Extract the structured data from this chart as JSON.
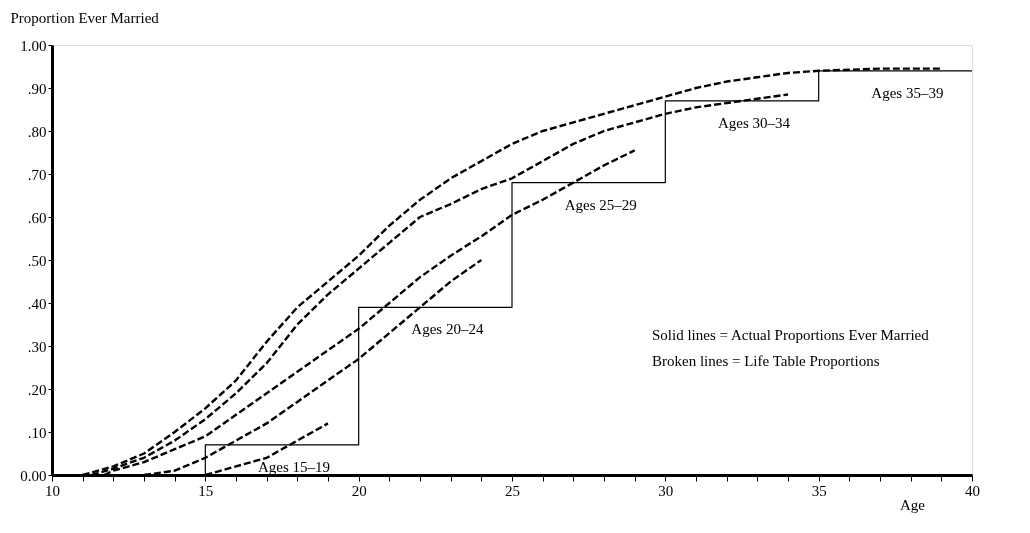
{
  "chart_data": {
    "type": "line",
    "xlabel": "Age",
    "ylabel": "Proportion Ever Married",
    "xlim": [
      10,
      40
    ],
    "ylim": [
      0,
      1
    ],
    "xticks": [
      10,
      {
        "value": 11,
        "label": null
      },
      {
        "value": 12,
        "label": null
      },
      {
        "value": 13,
        "label": null
      },
      {
        "value": 14,
        "label": null
      },
      15,
      {
        "value": 16,
        "label": null
      },
      {
        "value": 17,
        "label": null
      },
      {
        "value": 18,
        "label": null
      },
      {
        "value": 19,
        "label": null
      },
      20,
      {
        "value": 21,
        "label": null
      },
      {
        "value": 22,
        "label": null
      },
      {
        "value": 23,
        "label": null
      },
      {
        "value": 24,
        "label": null
      },
      25,
      {
        "value": 26,
        "label": null
      },
      {
        "value": 27,
        "label": null
      },
      {
        "value": 28,
        "label": null
      },
      {
        "value": 29,
        "label": null
      },
      30,
      {
        "value": 31,
        "label": null
      },
      {
        "value": 32,
        "label": null
      },
      {
        "value": 33,
        "label": null
      },
      {
        "value": 34,
        "label": null
      },
      35,
      {
        "value": 36,
        "label": null
      },
      {
        "value": 37,
        "label": null
      },
      {
        "value": 38,
        "label": null
      },
      {
        "value": 39,
        "label": null
      },
      40
    ],
    "yticks": [
      {
        "value": 0,
        "label": "0.00"
      },
      {
        "value": 0.1,
        "label": ".10"
      },
      {
        "value": 0.2,
        "label": ".20"
      },
      {
        "value": 0.3,
        "label": ".30"
      },
      {
        "value": 0.4,
        "label": ".40"
      },
      {
        "value": 0.5,
        "label": ".50"
      },
      {
        "value": 0.6,
        "label": ".60"
      },
      {
        "value": 0.7,
        "label": ".70"
      },
      {
        "value": 0.8,
        "label": ".80"
      },
      {
        "value": 0.9,
        "label": ".90"
      },
      {
        "value": 1,
        "label": "1.00"
      }
    ],
    "grid": false,
    "legend": false,
    "series": [
      {
        "type": "step",
        "color": "#000000",
        "line_style": "solid",
        "x": [
          15,
          15,
          20,
          25,
          30,
          35,
          40
        ],
        "values": [
          0,
          0.07,
          0.39,
          0.68,
          0.87,
          0.94,
          0.94
        ]
      },
      {
        "type": "line",
        "color": "#000000",
        "line_style": "dashed",
        "x": [
          11,
          12,
          13,
          14,
          15,
          16,
          17,
          18,
          19,
          20,
          21,
          22,
          23,
          24,
          25,
          26,
          27,
          28,
          29,
          30,
          31,
          32,
          33,
          34,
          35,
          37,
          39
        ],
        "values": [
          0,
          0.02,
          0.05,
          0.1,
          0.155,
          0.22,
          0.31,
          0.39,
          0.45,
          0.51,
          0.58,
          0.64,
          0.69,
          0.73,
          0.77,
          0.8,
          0.82,
          0.84,
          0.86,
          0.88,
          0.9,
          0.915,
          0.925,
          0.935,
          0.94,
          0.945,
          0.945
        ]
      },
      {
        "type": "line",
        "color": "#000000",
        "line_style": "dashed",
        "x": [
          11.3,
          12,
          13,
          14,
          15,
          16,
          17,
          18,
          19,
          20,
          21,
          22,
          23,
          24,
          25,
          26,
          27,
          28,
          29,
          30,
          31,
          32,
          33,
          34
        ],
        "values": [
          0,
          0.015,
          0.04,
          0.08,
          0.13,
          0.19,
          0.26,
          0.35,
          0.42,
          0.48,
          0.54,
          0.6,
          0.63,
          0.665,
          0.69,
          0.73,
          0.77,
          0.8,
          0.82,
          0.84,
          0.855,
          0.865,
          0.875,
          0.885
        ]
      },
      {
        "type": "line",
        "color": "#000000",
        "line_style": "dashed",
        "x": [
          11.7,
          12,
          13,
          14,
          15,
          16,
          17,
          18,
          19,
          20,
          21,
          22,
          23,
          24,
          25,
          26,
          27,
          28,
          29
        ],
        "values": [
          0,
          0.01,
          0.03,
          0.06,
          0.09,
          0.14,
          0.19,
          0.24,
          0.29,
          0.34,
          0.4,
          0.46,
          0.51,
          0.555,
          0.605,
          0.64,
          0.68,
          0.72,
          0.755
        ]
      },
      {
        "type": "line",
        "color": "#000000",
        "line_style": "dashed",
        "x": [
          13,
          14,
          15,
          16,
          17,
          18,
          19,
          20,
          21,
          22,
          23,
          24
        ],
        "values": [
          0,
          0.01,
          0.04,
          0.08,
          0.12,
          0.17,
          0.22,
          0.27,
          0.33,
          0.39,
          0.45,
          0.5
        ]
      },
      {
        "type": "line",
        "color": "#000000",
        "line_style": "dashed",
        "x": [
          15,
          16,
          17,
          18,
          19
        ],
        "values": [
          0,
          0.02,
          0.04,
          0.08,
          0.12
        ]
      }
    ],
    "annotations": [
      "Ages 15–19",
      "Ages 20–24",
      "Ages 25–29",
      "Ages 30–34",
      "Ages 35–39",
      "Solid lines    = Actual Proportions Ever Married",
      "Broken lines = Life Table Proportions"
    ]
  }
}
